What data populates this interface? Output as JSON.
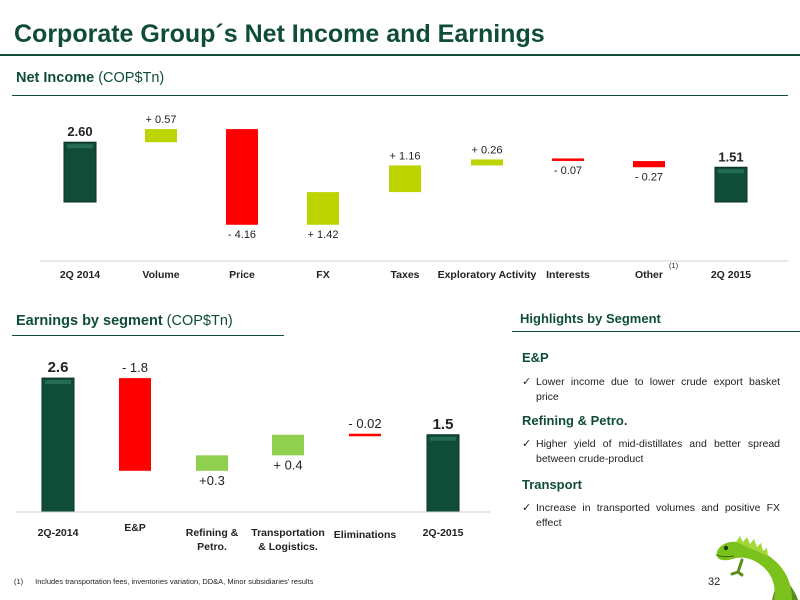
{
  "header": {
    "title": "Corporate Group´s Net Income and Earnings",
    "accent_color": "#0f4d39"
  },
  "net_income": {
    "title_bold": "Net Income",
    "title_unit": " (COP$Tn)",
    "other_note": "(1)"
  },
  "earnings": {
    "title_bold": "Earnings by segment",
    "title_unit": " (COP$Tn)"
  },
  "highlights": {
    "title": "Highlights by Segment",
    "sections": [
      {
        "name": "E&P",
        "text": "Lower income due to lower crude export basket price"
      },
      {
        "name": "Refining & Petro.",
        "text": "Higher yield of mid-distillates and better spread between crude-product"
      },
      {
        "name": "Transport",
        "text": "Increase in transported volumes and positive FX effect"
      }
    ],
    "check_icon": "check-icon"
  },
  "footnote": {
    "mark": "(1)",
    "text": "Includes transportation fees, inventories variation, DD&A, Minor subsidiaries' results"
  },
  "page_number": "32",
  "colors": {
    "total": "#0f4d39",
    "increase": "#bcd400",
    "decrease": "#ff0000",
    "increase_light": "#8fd14f"
  },
  "chart_data": [
    {
      "type": "bar",
      "subtype": "waterfall",
      "categories": [
        "2Q 2014",
        "Volume",
        "Price",
        "FX",
        "Taxes",
        "Exploratory Activity",
        "Interests",
        "Other",
        "2Q 2015"
      ],
      "values": [
        2.6,
        0.57,
        -4.16,
        1.42,
        1.16,
        0.26,
        -0.07,
        -0.27,
        1.51
      ],
      "kinds": [
        "total",
        "up",
        "down",
        "up",
        "up",
        "up",
        "down",
        "down",
        "total"
      ],
      "labels": [
        "2.60",
        "+ 0.57",
        "- 4.16",
        "+ 1.42",
        "+ 1.16",
        "+ 0.26",
        "- 0.07",
        "- 0.27",
        "1.51"
      ]
    },
    {
      "type": "bar",
      "subtype": "waterfall",
      "categories": [
        "2Q-2014",
        "E&P",
        "Refining & Petro.",
        "Transportation & Logistics.",
        "Eliminations",
        "2Q-2015"
      ],
      "values": [
        2.6,
        -1.8,
        0.3,
        0.4,
        -0.02,
        1.5
      ],
      "kinds": [
        "total",
        "down",
        "up",
        "up",
        "down",
        "total"
      ],
      "labels": [
        "2.6",
        "- 1.8",
        "+0.3",
        "+ 0.4",
        "- 0.02",
        "1.5"
      ]
    }
  ]
}
